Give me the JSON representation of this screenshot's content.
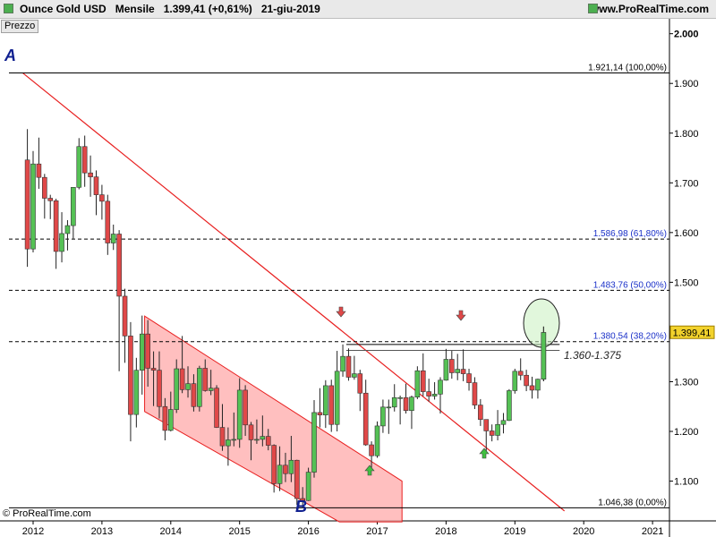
{
  "header": {
    "instrument": "Ounce Gold USD",
    "period": "Mensile",
    "quote": "1.399,41 (+0,61%)",
    "date": "21-giu-2019",
    "url": "www.ProRealTime.com"
  },
  "tag": "Prezzo",
  "copyright": "© ProRealTime.com",
  "colors": {
    "up": "#55c155",
    "down": "#e04848",
    "trendline": "#e82020",
    "channel_fill": "#ffaaaa",
    "fib_label": "#1a30c8",
    "current_price_bg": "#f2d22c",
    "circle": "#c8f0c0"
  },
  "chart_data": {
    "type": "candlestick",
    "title": "Ounce Gold USD",
    "period": "Mensile",
    "ylim": [
      1020,
      2030
    ],
    "y_ticks": [
      "2.000",
      "1.900",
      "1.800",
      "1.700",
      "1.600",
      "1.500",
      "1.400",
      "1.300",
      "1.200",
      "1.100"
    ],
    "y_tick_values": [
      2000,
      1900,
      1800,
      1700,
      1600,
      1500,
      1400,
      1300,
      1200,
      1100
    ],
    "x_ticks": [
      "2012",
      "2013",
      "2014",
      "2015",
      "2016",
      "2017",
      "2018",
      "2019",
      "2020",
      "2021"
    ],
    "x_tick_values": [
      2012.0,
      2013.0,
      2014.0,
      2015.0,
      2016.0,
      2017.0,
      2018.0,
      2019.0,
      2020.0,
      2021.0
    ],
    "current_price": "1.399,41",
    "fib_levels": [
      {
        "label": "1.921,14 (100,00%)",
        "value": 1921.14,
        "style": "solid"
      },
      {
        "label": "1.586,98 (61,80%)",
        "value": 1586.98,
        "style": "dashed"
      },
      {
        "label": "1.483,76 (50,00%)",
        "value": 1483.76,
        "style": "dashed"
      },
      {
        "label": "1.380,54 (38,20%)",
        "value": 1380.54,
        "style": "dashed"
      },
      {
        "label": "1.046,38 (0,00%)",
        "value": 1046.38,
        "style": "solid"
      }
    ],
    "zone_label": "1.360-1.375",
    "annotations": [
      "A",
      "B"
    ],
    "candles": [
      {
        "t": "2011-12",
        "o": 1746,
        "h": 1808,
        "l": 1531,
        "c": 1567
      },
      {
        "t": "2012-01",
        "o": 1567,
        "h": 1764,
        "l": 1560,
        "c": 1738
      },
      {
        "t": "2012-02",
        "o": 1738,
        "h": 1791,
        "l": 1688,
        "c": 1711
      },
      {
        "t": "2012-03",
        "o": 1711,
        "h": 1718,
        "l": 1628,
        "c": 1669
      },
      {
        "t": "2012-04",
        "o": 1669,
        "h": 1676,
        "l": 1627,
        "c": 1664
      },
      {
        "t": "2012-05",
        "o": 1664,
        "h": 1668,
        "l": 1527,
        "c": 1562
      },
      {
        "t": "2012-06",
        "o": 1562,
        "h": 1641,
        "l": 1540,
        "c": 1598
      },
      {
        "t": "2012-07",
        "o": 1598,
        "h": 1625,
        "l": 1564,
        "c": 1614
      },
      {
        "t": "2012-08",
        "o": 1614,
        "h": 1691,
        "l": 1588,
        "c": 1691
      },
      {
        "t": "2012-09",
        "o": 1691,
        "h": 1790,
        "l": 1687,
        "c": 1773
      },
      {
        "t": "2012-10",
        "o": 1773,
        "h": 1795,
        "l": 1692,
        "c": 1720
      },
      {
        "t": "2012-11",
        "o": 1720,
        "h": 1755,
        "l": 1672,
        "c": 1712
      },
      {
        "t": "2012-12",
        "o": 1712,
        "h": 1725,
        "l": 1635,
        "c": 1676
      },
      {
        "t": "2013-01",
        "o": 1676,
        "h": 1696,
        "l": 1626,
        "c": 1663
      },
      {
        "t": "2013-02",
        "o": 1663,
        "h": 1676,
        "l": 1555,
        "c": 1579
      },
      {
        "t": "2013-03",
        "o": 1579,
        "h": 1616,
        "l": 1565,
        "c": 1597
      },
      {
        "t": "2013-04",
        "o": 1597,
        "h": 1605,
        "l": 1321,
        "c": 1472
      },
      {
        "t": "2013-05",
        "o": 1472,
        "h": 1487,
        "l": 1338,
        "c": 1392
      },
      {
        "t": "2013-06",
        "o": 1392,
        "h": 1420,
        "l": 1180,
        "c": 1234
      },
      {
        "t": "2013-07",
        "o": 1234,
        "h": 1348,
        "l": 1208,
        "c": 1323
      },
      {
        "t": "2013-08",
        "o": 1323,
        "h": 1433,
        "l": 1274,
        "c": 1396
      },
      {
        "t": "2013-09",
        "o": 1396,
        "h": 1424,
        "l": 1290,
        "c": 1327
      },
      {
        "t": "2013-10",
        "o": 1327,
        "h": 1361,
        "l": 1251,
        "c": 1323
      },
      {
        "t": "2013-11",
        "o": 1323,
        "h": 1361,
        "l": 1226,
        "c": 1250
      },
      {
        "t": "2013-12",
        "o": 1250,
        "h": 1267,
        "l": 1182,
        "c": 1202
      },
      {
        "t": "2014-01",
        "o": 1202,
        "h": 1280,
        "l": 1200,
        "c": 1244
      },
      {
        "t": "2014-02",
        "o": 1244,
        "h": 1345,
        "l": 1237,
        "c": 1326
      },
      {
        "t": "2014-03",
        "o": 1326,
        "h": 1392,
        "l": 1277,
        "c": 1284
      },
      {
        "t": "2014-04",
        "o": 1284,
        "h": 1331,
        "l": 1268,
        "c": 1296
      },
      {
        "t": "2014-05",
        "o": 1296,
        "h": 1315,
        "l": 1240,
        "c": 1250
      },
      {
        "t": "2014-06",
        "o": 1250,
        "h": 1332,
        "l": 1240,
        "c": 1327
      },
      {
        "t": "2014-07",
        "o": 1327,
        "h": 1345,
        "l": 1280,
        "c": 1282
      },
      {
        "t": "2014-08",
        "o": 1282,
        "h": 1324,
        "l": 1273,
        "c": 1287
      },
      {
        "t": "2014-09",
        "o": 1287,
        "h": 1293,
        "l": 1207,
        "c": 1208
      },
      {
        "t": "2014-10",
        "o": 1208,
        "h": 1255,
        "l": 1161,
        "c": 1171
      },
      {
        "t": "2014-11",
        "o": 1171,
        "h": 1208,
        "l": 1131,
        "c": 1183
      },
      {
        "t": "2014-12",
        "o": 1183,
        "h": 1238,
        "l": 1170,
        "c": 1184
      },
      {
        "t": "2015-01",
        "o": 1184,
        "h": 1307,
        "l": 1167,
        "c": 1283
      },
      {
        "t": "2015-02",
        "o": 1283,
        "h": 1293,
        "l": 1191,
        "c": 1213
      },
      {
        "t": "2015-03",
        "o": 1213,
        "h": 1219,
        "l": 1142,
        "c": 1183
      },
      {
        "t": "2015-04",
        "o": 1183,
        "h": 1224,
        "l": 1175,
        "c": 1184
      },
      {
        "t": "2015-05",
        "o": 1184,
        "h": 1232,
        "l": 1170,
        "c": 1190
      },
      {
        "t": "2015-06",
        "o": 1190,
        "h": 1205,
        "l": 1162,
        "c": 1172
      },
      {
        "t": "2015-07",
        "o": 1172,
        "h": 1174,
        "l": 1077,
        "c": 1095
      },
      {
        "t": "2015-08",
        "o": 1095,
        "h": 1170,
        "l": 1080,
        "c": 1132
      },
      {
        "t": "2015-09",
        "o": 1132,
        "h": 1157,
        "l": 1098,
        "c": 1115
      },
      {
        "t": "2015-10",
        "o": 1115,
        "h": 1191,
        "l": 1098,
        "c": 1142
      },
      {
        "t": "2015-11",
        "o": 1142,
        "h": 1143,
        "l": 1052,
        "c": 1065
      },
      {
        "t": "2015-12",
        "o": 1065,
        "h": 1088,
        "l": 1046,
        "c": 1061
      },
      {
        "t": "2016-01",
        "o": 1061,
        "h": 1127,
        "l": 1060,
        "c": 1118
      },
      {
        "t": "2016-02",
        "o": 1118,
        "h": 1263,
        "l": 1107,
        "c": 1238
      },
      {
        "t": "2016-03",
        "o": 1238,
        "h": 1287,
        "l": 1208,
        "c": 1233
      },
      {
        "t": "2016-04",
        "o": 1233,
        "h": 1303,
        "l": 1207,
        "c": 1292
      },
      {
        "t": "2016-05",
        "o": 1292,
        "h": 1304,
        "l": 1199,
        "c": 1214
      },
      {
        "t": "2016-06",
        "o": 1214,
        "h": 1362,
        "l": 1200,
        "c": 1321
      },
      {
        "t": "2016-07",
        "o": 1321,
        "h": 1375,
        "l": 1310,
        "c": 1351
      },
      {
        "t": "2016-08",
        "o": 1351,
        "h": 1367,
        "l": 1302,
        "c": 1309
      },
      {
        "t": "2016-09",
        "o": 1309,
        "h": 1352,
        "l": 1304,
        "c": 1316
      },
      {
        "t": "2016-10",
        "o": 1316,
        "h": 1324,
        "l": 1241,
        "c": 1277
      },
      {
        "t": "2016-11",
        "o": 1277,
        "h": 1304,
        "l": 1171,
        "c": 1173
      },
      {
        "t": "2016-12",
        "o": 1173,
        "h": 1180,
        "l": 1122,
        "c": 1151
      },
      {
        "t": "2017-01",
        "o": 1151,
        "h": 1220,
        "l": 1147,
        "c": 1211
      },
      {
        "t": "2017-02",
        "o": 1211,
        "h": 1264,
        "l": 1197,
        "c": 1249
      },
      {
        "t": "2017-03",
        "o": 1249,
        "h": 1264,
        "l": 1195,
        "c": 1249
      },
      {
        "t": "2017-04",
        "o": 1249,
        "h": 1295,
        "l": 1240,
        "c": 1268
      },
      {
        "t": "2017-05",
        "o": 1268,
        "h": 1272,
        "l": 1214,
        "c": 1268
      },
      {
        "t": "2017-06",
        "o": 1268,
        "h": 1296,
        "l": 1236,
        "c": 1242
      },
      {
        "t": "2017-07",
        "o": 1242,
        "h": 1272,
        "l": 1205,
        "c": 1269
      },
      {
        "t": "2017-08",
        "o": 1269,
        "h": 1331,
        "l": 1265,
        "c": 1322
      },
      {
        "t": "2017-09",
        "o": 1322,
        "h": 1357,
        "l": 1271,
        "c": 1280
      },
      {
        "t": "2017-10",
        "o": 1280,
        "h": 1306,
        "l": 1260,
        "c": 1271
      },
      {
        "t": "2017-11",
        "o": 1271,
        "h": 1299,
        "l": 1264,
        "c": 1275
      },
      {
        "t": "2017-12",
        "o": 1275,
        "h": 1309,
        "l": 1236,
        "c": 1303
      },
      {
        "t": "2018-01",
        "o": 1303,
        "h": 1366,
        "l": 1302,
        "c": 1345
      },
      {
        "t": "2018-02",
        "o": 1345,
        "h": 1362,
        "l": 1306,
        "c": 1318
      },
      {
        "t": "2018-03",
        "o": 1318,
        "h": 1356,
        "l": 1303,
        "c": 1325
      },
      {
        "t": "2018-04",
        "o": 1325,
        "h": 1365,
        "l": 1301,
        "c": 1316
      },
      {
        "t": "2018-05",
        "o": 1316,
        "h": 1326,
        "l": 1282,
        "c": 1298
      },
      {
        "t": "2018-06",
        "o": 1298,
        "h": 1309,
        "l": 1245,
        "c": 1253
      },
      {
        "t": "2018-07",
        "o": 1253,
        "h": 1265,
        "l": 1211,
        "c": 1224
      },
      {
        "t": "2018-08",
        "o": 1224,
        "h": 1224,
        "l": 1160,
        "c": 1201
      },
      {
        "t": "2018-09",
        "o": 1201,
        "h": 1214,
        "l": 1180,
        "c": 1192
      },
      {
        "t": "2018-10",
        "o": 1192,
        "h": 1243,
        "l": 1182,
        "c": 1214
      },
      {
        "t": "2018-11",
        "o": 1214,
        "h": 1237,
        "l": 1196,
        "c": 1222
      },
      {
        "t": "2018-12",
        "o": 1222,
        "h": 1285,
        "l": 1221,
        "c": 1282
      },
      {
        "t": "2019-01",
        "o": 1282,
        "h": 1326,
        "l": 1276,
        "c": 1321
      },
      {
        "t": "2019-02",
        "o": 1321,
        "h": 1347,
        "l": 1303,
        "c": 1313
      },
      {
        "t": "2019-03",
        "o": 1313,
        "h": 1324,
        "l": 1281,
        "c": 1292
      },
      {
        "t": "2019-04",
        "o": 1292,
        "h": 1310,
        "l": 1266,
        "c": 1283
      },
      {
        "t": "2019-05",
        "o": 1283,
        "h": 1306,
        "l": 1266,
        "c": 1305
      },
      {
        "t": "2019-06",
        "o": 1305,
        "h": 1411,
        "l": 1301,
        "c": 1399
      }
    ]
  }
}
